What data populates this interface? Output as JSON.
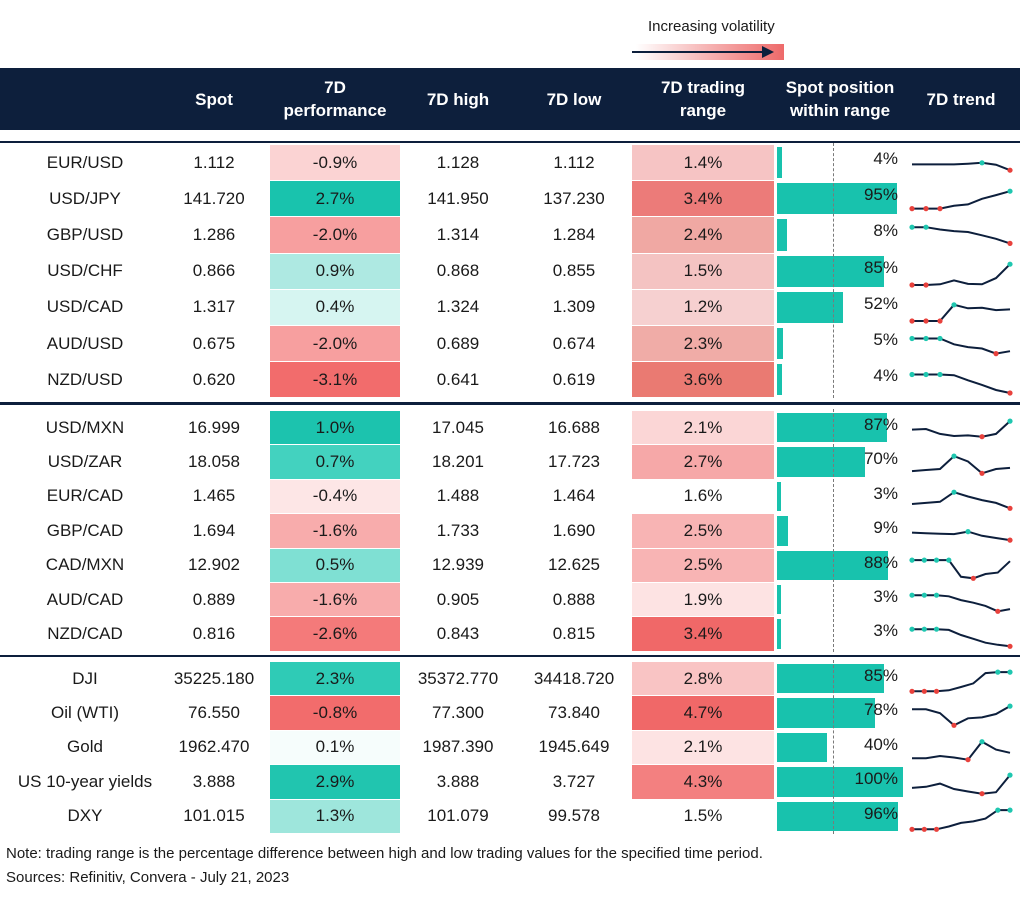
{
  "legend": {
    "volatility_label": "Increasing volatility"
  },
  "headers": {
    "spot": "Spot",
    "perf_line1": "7D",
    "perf_line2": "performance",
    "high": "7D high",
    "low": "7D low",
    "range_line1": "7D trading",
    "range_line2": "range",
    "pos_line1": "Spot position",
    "pos_line2": "within range",
    "trend": "7D trend"
  },
  "colors": {
    "header_bg": "#0d1f3c",
    "position_bar": "#18c2ad",
    "trend_line": "#0d1f3c",
    "high_marker": "#1fc7b0",
    "low_marker": "#e8413c"
  },
  "groups": [
    {
      "rows": [
        {
          "name": "EUR/USD",
          "spot": "1.112",
          "perf": "-0.9%",
          "high": "1.128",
          "low": "1.112",
          "range": "1.4%",
          "position": "4%",
          "position_value": 0.04,
          "perf_color": "#fbd3d3",
          "range_color": "#f6c4c4",
          "trend": [
            0.55,
            0.55,
            0.55,
            0.55,
            0.58,
            0.62,
            0.54,
            0.3
          ]
        },
        {
          "name": "USD/JPY",
          "spot": "141.720",
          "perf": "2.7%",
          "high": "141.950",
          "low": "137.230",
          "range": "3.4%",
          "position": "95%",
          "position_value": 0.95,
          "perf_color": "#19c3ad",
          "range_color": "#ec7b79",
          "trend": [
            0.2,
            0.2,
            0.2,
            0.32,
            0.38,
            0.62,
            0.78,
            0.95
          ]
        },
        {
          "name": "GBP/USD",
          "spot": "1.286",
          "perf": "-2.0%",
          "high": "1.314",
          "low": "1.284",
          "range": "2.4%",
          "position": "8%",
          "position_value": 0.08,
          "perf_color": "#f79f9f",
          "range_color": "#f0a8a3",
          "trend": [
            0.95,
            0.95,
            0.85,
            0.78,
            0.74,
            0.6,
            0.45,
            0.25
          ]
        },
        {
          "name": "USD/CHF",
          "spot": "0.866",
          "perf": "0.9%",
          "high": "0.868",
          "low": "0.855",
          "range": "1.5%",
          "position": "85%",
          "position_value": 0.85,
          "perf_color": "#aee9e2",
          "range_color": "#f4c3c2",
          "trend": [
            0.05,
            0.05,
            0.08,
            0.25,
            0.1,
            0.08,
            0.35,
            0.95
          ]
        },
        {
          "name": "USD/CAD",
          "spot": "1.317",
          "perf": "0.4%",
          "high": "1.324",
          "low": "1.309",
          "range": "1.2%",
          "position": "52%",
          "position_value": 0.52,
          "perf_color": "#d6f5f1",
          "range_color": "#f6d0d0",
          "trend": [
            0.05,
            0.05,
            0.05,
            0.75,
            0.6,
            0.62,
            0.52,
            0.55
          ]
        },
        {
          "name": "AUD/USD",
          "spot": "0.675",
          "perf": "-2.0%",
          "high": "0.689",
          "low": "0.674",
          "range": "2.3%",
          "position": "5%",
          "position_value": 0.05,
          "perf_color": "#f79f9f",
          "range_color": "#f0aca7",
          "trend": [
            0.85,
            0.85,
            0.85,
            0.6,
            0.48,
            0.42,
            0.2,
            0.3
          ]
        },
        {
          "name": "NZD/USD",
          "spot": "0.620",
          "perf": "-3.1%",
          "high": "0.641",
          "low": "0.619",
          "range": "3.6%",
          "position": "4%",
          "position_value": 0.04,
          "perf_color": "#f26c6c",
          "range_color": "#ea7a72",
          "trend": [
            0.85,
            0.85,
            0.85,
            0.82,
            0.6,
            0.4,
            0.18,
            0.05
          ]
        }
      ]
    },
    {
      "rows": [
        {
          "name": "USD/MXN",
          "spot": "16.999",
          "perf": "1.0%",
          "high": "17.045",
          "low": "16.688",
          "range": "2.1%",
          "position": "87%",
          "position_value": 0.87,
          "perf_color": "#1cc3ae",
          "range_color": "#fbd6d6",
          "trend": [
            0.55,
            0.58,
            0.35,
            0.25,
            0.28,
            0.22,
            0.35,
            0.95
          ]
        },
        {
          "name": "USD/ZAR",
          "spot": "18.058",
          "perf": "0.7%",
          "high": "18.201",
          "low": "17.723",
          "range": "2.7%",
          "position": "70%",
          "position_value": 0.7,
          "perf_color": "#43d2bf",
          "range_color": "#f6a8a8",
          "trend": [
            0.2,
            0.25,
            0.3,
            0.9,
            0.65,
            0.1,
            0.3,
            0.35
          ]
        },
        {
          "name": "EUR/CAD",
          "spot": "1.465",
          "perf": "-0.4%",
          "high": "1.488",
          "low": "1.464",
          "range": "1.6%",
          "position": "3%",
          "position_value": 0.03,
          "perf_color": "#fde6e6",
          "range_color": "#ffffff",
          "trend": [
            0.3,
            0.35,
            0.4,
            0.85,
            0.65,
            0.48,
            0.35,
            0.1
          ]
        },
        {
          "name": "GBP/CAD",
          "spot": "1.694",
          "perf": "-1.6%",
          "high": "1.733",
          "low": "1.690",
          "range": "2.5%",
          "position": "9%",
          "position_value": 0.09,
          "perf_color": "#f8acac",
          "range_color": "#f8b4b4",
          "trend": [
            0.55,
            0.52,
            0.5,
            0.48,
            0.6,
            0.4,
            0.3,
            0.2
          ]
        },
        {
          "name": "CAD/MXN",
          "spot": "12.902",
          "perf": "0.5%",
          "high": "12.939",
          "low": "12.625",
          "range": "2.5%",
          "position": "88%",
          "position_value": 0.88,
          "perf_color": "#7fe0d3",
          "range_color": "#f8b4b4",
          "trend": [
            0.9,
            0.9,
            0.9,
            0.9,
            0.12,
            0.05,
            0.25,
            0.32,
            0.85
          ]
        },
        {
          "name": "AUD/CAD",
          "spot": "0.889",
          "perf": "-1.6%",
          "high": "0.905",
          "low": "0.888",
          "range": "1.9%",
          "position": "3%",
          "position_value": 0.03,
          "perf_color": "#f8acac",
          "range_color": "#fde3e3",
          "trend": [
            0.85,
            0.85,
            0.85,
            0.8,
            0.62,
            0.5,
            0.35,
            0.1,
            0.2
          ]
        },
        {
          "name": "NZD/CAD",
          "spot": "0.816",
          "perf": "-2.6%",
          "high": "0.843",
          "low": "0.815",
          "range": "3.4%",
          "position": "3%",
          "position_value": 0.03,
          "perf_color": "#f47a7a",
          "range_color": "#f06868",
          "trend": [
            0.85,
            0.85,
            0.85,
            0.82,
            0.58,
            0.4,
            0.22,
            0.12,
            0.05
          ]
        }
      ]
    },
    {
      "rows": [
        {
          "name": "DJI",
          "spot": "35225.180",
          "perf": "2.3%",
          "high": "35372.770",
          "low": "34418.720",
          "range": "2.8%",
          "position": "85%",
          "position_value": 0.85,
          "perf_color": "#2fcbb6",
          "range_color": "#f9c4c4",
          "trend": [
            0.05,
            0.05,
            0.05,
            0.1,
            0.25,
            0.42,
            0.9,
            0.95,
            0.95
          ]
        },
        {
          "name": "Oil (WTI)",
          "spot": "76.550",
          "perf": "-0.8%",
          "high": "77.300",
          "low": "73.840",
          "range": "4.7%",
          "position": "78%",
          "position_value": 0.78,
          "perf_color": "#f26c6c",
          "range_color": "#f06868",
          "trend": [
            0.8,
            0.8,
            0.62,
            0.05,
            0.38,
            0.42,
            0.58,
            0.95
          ]
        },
        {
          "name": "Gold",
          "spot": "1962.470",
          "perf": "0.1%",
          "high": "1987.390",
          "low": "1945.649",
          "range": "2.1%",
          "position": "40%",
          "position_value": 0.4,
          "perf_color": "#f6fdfc",
          "range_color": "#fde3e3",
          "trend": [
            0.15,
            0.15,
            0.25,
            0.18,
            0.08,
            0.92,
            0.55,
            0.4
          ]
        },
        {
          "name": "US 10-year yields",
          "spot": "3.888",
          "perf": "2.9%",
          "high": "3.888",
          "low": "3.727",
          "range": "4.3%",
          "position": "100%",
          "position_value": 1.0,
          "perf_color": "#21c5af",
          "range_color": "#f38080",
          "trend": [
            0.35,
            0.4,
            0.55,
            0.3,
            0.18,
            0.08,
            0.15,
            0.95
          ]
        },
        {
          "name": "DXY",
          "spot": "101.015",
          "perf": "1.3%",
          "high": "101.079",
          "low": "99.578",
          "range": "1.5%",
          "position": "96%",
          "position_value": 0.96,
          "perf_color": "#9ee6dc",
          "range_color": "#ffffff",
          "trend": [
            0.05,
            0.05,
            0.05,
            0.18,
            0.35,
            0.42,
            0.55,
            0.95,
            0.95
          ]
        }
      ]
    }
  ],
  "footer": {
    "note": "Note: trading range is the percentage difference between high and low trading values for the specified time period.",
    "sources": "Sources: Refinitiv, Convera - July 21, 2023"
  }
}
